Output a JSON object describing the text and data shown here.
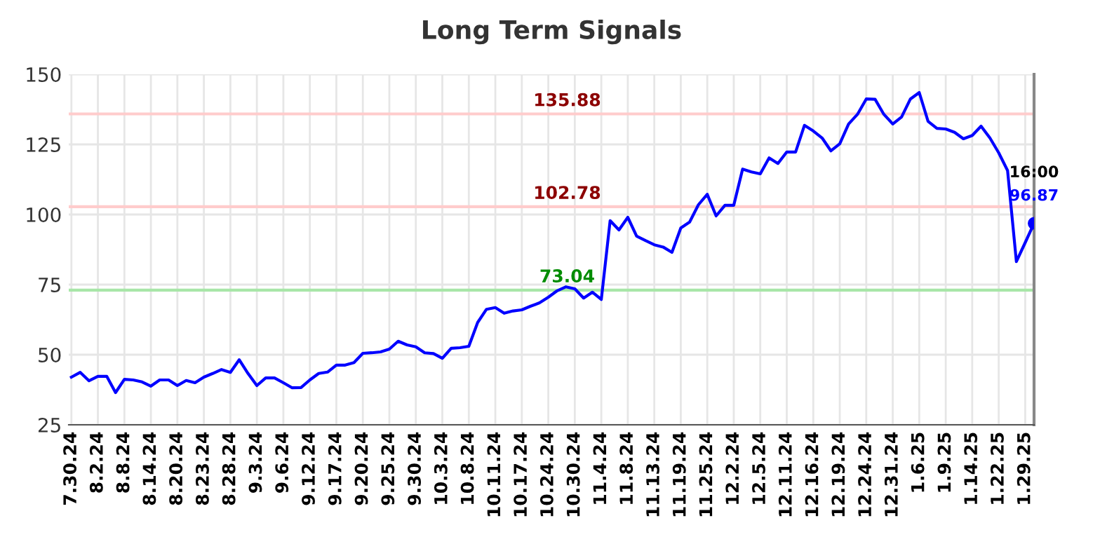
{
  "chart_data": {
    "type": "line",
    "title": "Long Term Signals",
    "categories": [
      "7.30.24",
      null,
      null,
      "8.2.24",
      null,
      null,
      "8.8.24",
      null,
      null,
      "8.14.24",
      null,
      null,
      "8.20.24",
      null,
      null,
      "8.23.24",
      null,
      null,
      "8.28.24",
      null,
      null,
      "9.3.24",
      null,
      null,
      "9.6.24",
      null,
      null,
      "9.12.24",
      null,
      null,
      "9.17.24",
      null,
      null,
      "9.20.24",
      null,
      null,
      "9.25.24",
      null,
      null,
      "9.30.24",
      null,
      null,
      "10.3.24",
      null,
      null,
      "10.8.24",
      null,
      null,
      "10.11.24",
      null,
      null,
      "10.17.24",
      null,
      null,
      "10.24.24",
      null,
      null,
      "10.30.24",
      null,
      null,
      "11.4.24",
      null,
      null,
      "11.8.24",
      null,
      null,
      "11.13.24",
      null,
      null,
      "11.19.24",
      null,
      null,
      "11.25.24",
      null,
      null,
      "12.2.24",
      null,
      null,
      "12.5.24",
      null,
      null,
      "12.11.24",
      null,
      null,
      "12.16.24",
      null,
      null,
      "12.19.24",
      null,
      null,
      "12.24.24",
      null,
      null,
      "12.31.24",
      null,
      null,
      "1.6.25",
      null,
      null,
      "1.9.25",
      null,
      null,
      "1.14.25",
      null,
      null,
      "1.22.25",
      null,
      null,
      "1.29.25",
      null
    ],
    "series": [
      {
        "color": "#0000ff",
        "marker": "none",
        "values": [
          42,
          43.7,
          40.7,
          42.3,
          42.3,
          36.5,
          41.2,
          41,
          40.3,
          38.8,
          41,
          41,
          39,
          40.8,
          40,
          42,
          43.3,
          44.7,
          43.7,
          48.2,
          43.3,
          39,
          41.7,
          41.7,
          40,
          38.2,
          38.3,
          41,
          43.3,
          43.8,
          46.3,
          46.3,
          47.2,
          50.5,
          50.7,
          51,
          52,
          54.8,
          53.5,
          52.8,
          50.7,
          50.4,
          48.7,
          52.3,
          52.5,
          53,
          61.5,
          66.2,
          66.8,
          64.8,
          65.6,
          66,
          67.3,
          68.5,
          70.5,
          72.8,
          74.2,
          73.5,
          70.2,
          72.3,
          69.7,
          97.8,
          94.5,
          99,
          92.3,
          90.7,
          89.2,
          88.4,
          86.5,
          95.2,
          97.3,
          103.5,
          107.2,
          99.5,
          103.3,
          103.3,
          116.2,
          115.2,
          114.5,
          120.2,
          118.2,
          122.3,
          122.3,
          131.8,
          129.8,
          127.3,
          122.7,
          125.2,
          132.3,
          135.7,
          141.2,
          141.1,
          135.7,
          132.3,
          134.8,
          141.2,
          143.5,
          133.2,
          130.7,
          130.5,
          129.3,
          127,
          128.2,
          131.5,
          127.3,
          122,
          115.7,
          83.2,
          90,
          96.87
        ]
      },
      {
        "type": "scatter",
        "color": "#0000ff",
        "marker": "circle",
        "values": [
          null,
          null,
          null,
          null,
          null,
          null,
          null,
          null,
          null,
          null,
          null,
          null,
          null,
          null,
          null,
          null,
          null,
          null,
          null,
          null,
          null,
          null,
          null,
          null,
          null,
          null,
          null,
          null,
          null,
          null,
          null,
          null,
          null,
          null,
          null,
          null,
          null,
          null,
          null,
          null,
          null,
          null,
          null,
          null,
          null,
          null,
          null,
          null,
          null,
          null,
          null,
          null,
          null,
          null,
          null,
          null,
          null,
          null,
          null,
          null,
          null,
          null,
          null,
          null,
          null,
          null,
          null,
          null,
          null,
          null,
          null,
          null,
          null,
          null,
          null,
          null,
          null,
          null,
          null,
          null,
          null,
          null,
          null,
          null,
          null,
          null,
          null,
          null,
          null,
          null,
          null,
          null,
          null,
          null,
          null,
          null,
          null,
          null,
          null,
          null,
          null,
          null,
          null,
          null,
          null,
          null,
          null,
          null,
          null,
          96.87
        ],
        "value_labels": [
          null,
          null,
          null,
          null,
          null,
          null,
          null,
          null,
          null,
          null,
          null,
          null,
          null,
          null,
          null,
          null,
          null,
          null,
          null,
          null,
          null,
          null,
          null,
          null,
          null,
          null,
          null,
          null,
          null,
          null,
          null,
          null,
          null,
          null,
          null,
          null,
          null,
          null,
          null,
          null,
          null,
          null,
          null,
          null,
          null,
          null,
          null,
          null,
          null,
          null,
          null,
          null,
          null,
          null,
          null,
          null,
          null,
          null,
          null,
          null,
          null,
          null,
          null,
          null,
          null,
          null,
          null,
          null,
          null,
          null,
          null,
          null,
          null,
          null,
          null,
          null,
          null,
          null,
          null,
          null,
          null,
          null,
          null,
          null,
          null,
          null,
          null,
          null,
          null,
          null,
          null,
          null,
          null,
          null,
          null,
          null,
          null,
          null,
          null,
          null,
          null,
          null,
          null,
          null,
          null,
          null,
          null,
          null,
          null,
          "96.87"
        ]
      }
    ],
    "annotations": [
      "16:00"
    ],
    "ref_lines": [
      {
        "axis": "y",
        "value": 135.88,
        "label": "135.88",
        "color": "#ffcccc"
      },
      {
        "axis": "y",
        "value": 102.78,
        "label": "102.78",
        "color": "#ffcccc"
      },
      {
        "axis": "y",
        "value": 73.04,
        "label": "73.04",
        "color": "#a8e6a8"
      }
    ],
    "ylim": [
      25,
      150
    ],
    "yticks": [
      25,
      50,
      75,
      100,
      125,
      150
    ],
    "grid": true
  }
}
